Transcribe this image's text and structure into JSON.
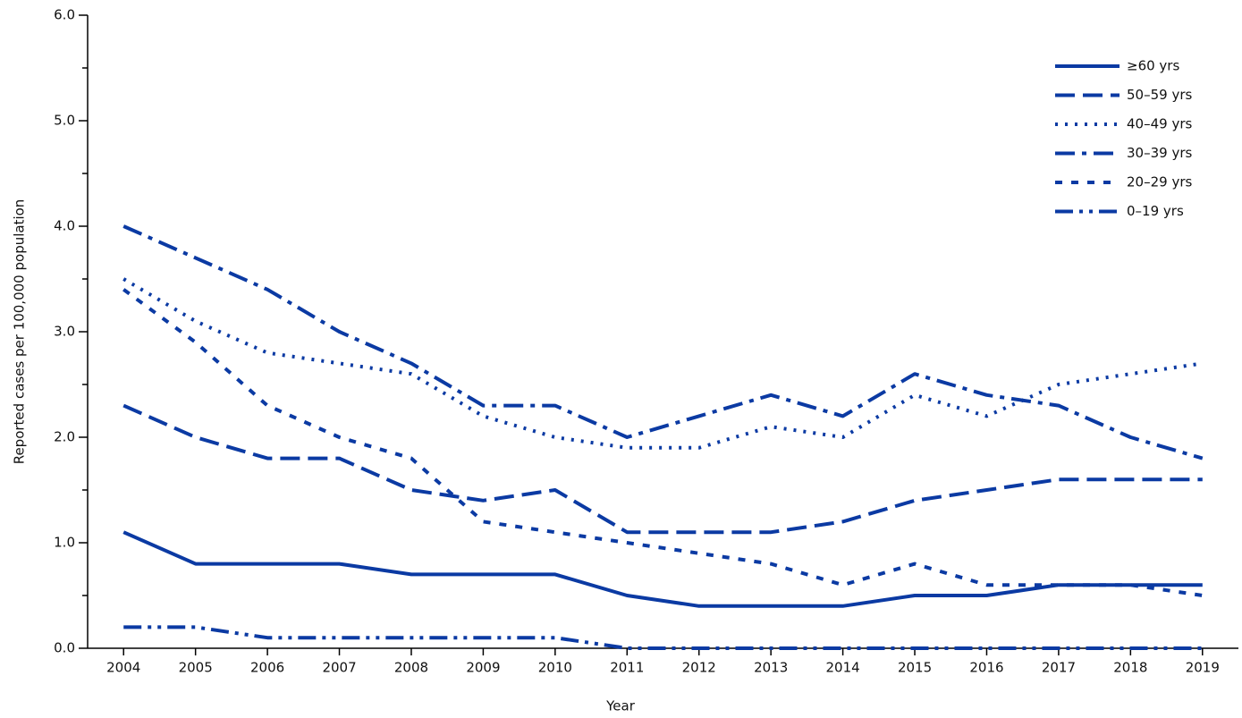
{
  "chart_data": {
    "type": "line",
    "x_label": "Year",
    "y_label": "Reported cases per 100,000 population",
    "categories": [
      "2004",
      "2005",
      "2006",
      "2007",
      "2008",
      "2009",
      "2010",
      "2011",
      "2012",
      "2013",
      "2014",
      "2015",
      "2016",
      "2017",
      "2018",
      "2019"
    ],
    "series": [
      {
        "name": "≥60 yrs",
        "color": "#0b3aa3",
        "dash": "solid",
        "values": [
          1.1,
          0.8,
          0.8,
          0.8,
          0.7,
          0.7,
          0.7,
          0.5,
          0.4,
          0.4,
          0.4,
          0.5,
          0.5,
          0.6,
          0.6,
          0.6
        ]
      },
      {
        "name": "50–59 yrs",
        "color": "#0b3aa3",
        "dash": "dashed",
        "values": [
          2.3,
          2.0,
          1.8,
          1.8,
          1.5,
          1.4,
          1.5,
          1.1,
          1.1,
          1.1,
          1.2,
          1.4,
          1.5,
          1.6,
          1.6,
          1.6
        ]
      },
      {
        "name": "40–49 yrs",
        "color": "#0b3aa3",
        "dash": "dotted",
        "values": [
          3.5,
          3.1,
          2.8,
          2.7,
          2.6,
          2.2,
          2.0,
          1.9,
          1.9,
          2.1,
          2.0,
          2.4,
          2.2,
          2.5,
          2.6,
          2.7
        ]
      },
      {
        "name": "30–39 yrs",
        "color": "#0b3aa3",
        "dash": "dashdot",
        "values": [
          4.0,
          3.7,
          3.4,
          3.0,
          2.7,
          2.3,
          2.3,
          2.0,
          2.2,
          2.4,
          2.2,
          2.6,
          2.4,
          2.3,
          2.0,
          1.8
        ]
      },
      {
        "name": "20–29 yrs",
        "color": "#0b3aa3",
        "dash": "shortdash",
        "values": [
          3.4,
          2.9,
          2.3,
          2.0,
          1.8,
          1.2,
          1.1,
          1.0,
          0.9,
          0.8,
          0.6,
          0.8,
          0.6,
          0.6,
          0.6,
          0.5
        ]
      },
      {
        "name": "0–19 yrs",
        "color": "#0b3aa3",
        "dash": "dashdotdot",
        "values": [
          0.2,
          0.2,
          0.1,
          0.1,
          0.1,
          0.1,
          0.1,
          0,
          0,
          0,
          0,
          0,
          0,
          0,
          0,
          0
        ]
      }
    ],
    "ylim": [
      0,
      6
    ],
    "yticks": [
      {
        "value": 0,
        "label": "0.0"
      },
      {
        "value": 1,
        "label": "1.0"
      },
      {
        "value": 2,
        "label": "2.0"
      },
      {
        "value": 3,
        "label": "3.0"
      },
      {
        "value": 4,
        "label": "4.0"
      },
      {
        "value": 5,
        "label": "5.0"
      },
      {
        "value": 6,
        "label": "6.0"
      }
    ],
    "yticks_minor": [
      0.5,
      1.5,
      2.5,
      3.5,
      4.5,
      5.5
    ],
    "grid": false,
    "legend": "upper right"
  }
}
